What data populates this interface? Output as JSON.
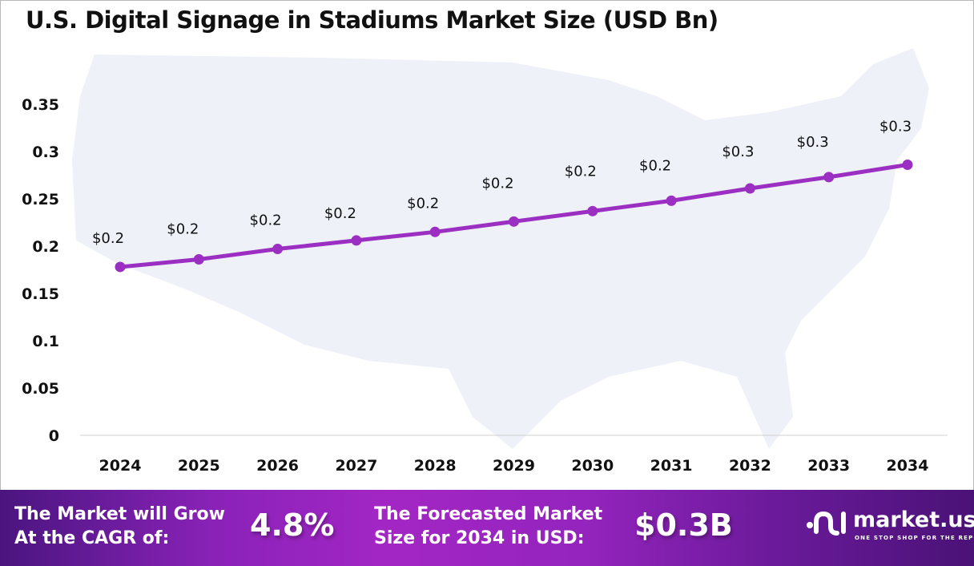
{
  "title": "U.S. Digital Signage in Stadiums Market Size (USD Bn)",
  "colors": {
    "line": "#9b2fc2",
    "map": "#eef1f8",
    "footer_start": "#4a157f",
    "footer_mid": "#a326c4"
  },
  "chart_data": {
    "type": "line",
    "title": "U.S. Digital Signage in Stadiums Market Size (USD Bn)",
    "categories": [
      "2024",
      "2025",
      "2026",
      "2027",
      "2028",
      "2029",
      "2030",
      "2031",
      "2032",
      "2033",
      "2034"
    ],
    "values": [
      0.178,
      0.186,
      0.197,
      0.206,
      0.215,
      0.226,
      0.237,
      0.248,
      0.261,
      0.273,
      0.286
    ],
    "data_labels": [
      "$0.2",
      "$0.2",
      "$0.2",
      "$0.2",
      "$0.2",
      "$0.2",
      "$0.2",
      "$0.2",
      "$0.3",
      "$0.3",
      "$0.3"
    ],
    "yticks": [
      "0",
      "0.05",
      "0.1",
      "0.15",
      "0.2",
      "0.25",
      "0.3",
      "0.35"
    ],
    "ylim": [
      0,
      0.35
    ],
    "grid": false,
    "background": "US map silhouette"
  },
  "footer": {
    "cagr_text_1": "The Market will Grow",
    "cagr_text_2": "At the CAGR of:",
    "cagr_value": "4.8%",
    "forecast_text_1": "The Forecasted Market",
    "forecast_text_2": "Size for 2034 in USD:",
    "forecast_value": "$0.3B",
    "logo_name": "market.us",
    "logo_tagline": "ONE STOP SHOP FOR THE REPORTS"
  }
}
